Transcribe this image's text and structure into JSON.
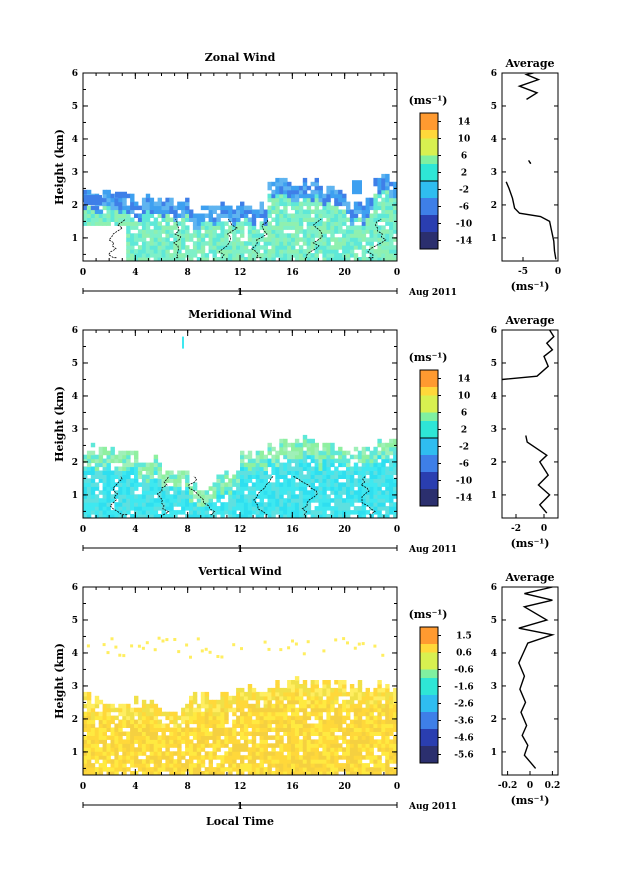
{
  "chart_data": [
    {
      "type": "heatmap",
      "title": "Zonal Wind",
      "ylabel": "Height (km)",
      "x_ticks": [
        "0",
        "4",
        "8",
        "12",
        "16",
        "20",
        "0"
      ],
      "xlim": [
        0,
        24
      ],
      "y_ticks": [
        "1",
        "2",
        "3",
        "4",
        "5",
        "6"
      ],
      "ylim": [
        0.3,
        6
      ],
      "date_label": "1",
      "month_label": "Aug 2011",
      "colorbar": {
        "unit": "(ms⁻¹)",
        "ticks": [
          "14",
          "10",
          "6",
          "2",
          "-2",
          "-6",
          "-10",
          "-14"
        ],
        "range": [
          -16,
          16
        ],
        "zero_line": 0
      },
      "profile": {
        "title": "Average",
        "unit": "(ms⁻¹)",
        "x_ticks": [
          "-5",
          "0"
        ],
        "xlim": [
          -8,
          0
        ],
        "points": [
          [
            -0.3,
            0.35
          ],
          [
            -0.5,
            0.6
          ],
          [
            -0.6,
            0.9
          ],
          [
            -0.8,
            1.1
          ],
          [
            -1.0,
            1.3
          ],
          [
            -1.2,
            1.5
          ],
          [
            -2.5,
            1.65
          ],
          [
            -5.5,
            1.75
          ],
          [
            -6.2,
            1.9
          ],
          [
            -6.5,
            2.2
          ],
          [
            -7.0,
            2.5
          ],
          [
            -7.4,
            2.7
          ]
        ],
        "blobs": [
          [
            [
              -4.2,
              3.35
            ],
            [
              -3.9,
              3.25
            ],
            [
              -4.0,
              3.3
            ]
          ],
          [
            [
              -4.5,
              5.2
            ],
            [
              -3.0,
              5.4
            ],
            [
              -5.5,
              5.6
            ],
            [
              -2.8,
              5.8
            ],
            [
              -4.5,
              5.95
            ],
            [
              -3.5,
              6.0
            ]
          ]
        ]
      }
    },
    {
      "type": "heatmap",
      "title": "Meridional Wind",
      "ylabel": "Height (km)",
      "x_ticks": [
        "0",
        "4",
        "8",
        "12",
        "16",
        "20",
        "0"
      ],
      "xlim": [
        0,
        24
      ],
      "y_ticks": [
        "1",
        "2",
        "3",
        "4",
        "5",
        "6"
      ],
      "ylim": [
        0.3,
        6
      ],
      "date_label": "1",
      "month_label": "Aug 2011",
      "colorbar": {
        "unit": "(ms⁻¹)",
        "ticks": [
          "14",
          "10",
          "6",
          "2",
          "-2",
          "-6",
          "-10",
          "-14"
        ],
        "range": [
          -16,
          16
        ],
        "zero_line": 0
      },
      "profile": {
        "title": "Average",
        "unit": "(ms⁻¹)",
        "x_ticks": [
          "-2",
          "0"
        ],
        "xlim": [
          -3,
          1
        ],
        "points": [
          [
            0.2,
            0.45
          ],
          [
            -0.3,
            0.7
          ],
          [
            0.4,
            1.0
          ],
          [
            -0.4,
            1.3
          ],
          [
            0.3,
            1.6
          ],
          [
            -0.3,
            2.0
          ],
          [
            0.2,
            2.2
          ],
          [
            -0.5,
            2.4
          ],
          [
            -1.2,
            2.6
          ],
          [
            -1.3,
            2.8
          ]
        ],
        "blobs": [
          [
            [
              -3.0,
              4.5
            ],
            [
              -0.5,
              4.6
            ],
            [
              0.3,
              4.9
            ],
            [
              0.0,
              5.2
            ],
            [
              0.6,
              5.4
            ],
            [
              0.2,
              5.6
            ],
            [
              0.7,
              5.8
            ],
            [
              0.4,
              6.0
            ]
          ]
        ]
      }
    },
    {
      "type": "heatmap",
      "title": "Vertical Wind",
      "xlabel": "Local Time",
      "ylabel": "Height (km)",
      "x_ticks": [
        "0",
        "4",
        "8",
        "12",
        "16",
        "20",
        "0"
      ],
      "xlim": [
        0,
        24
      ],
      "y_ticks": [
        "1",
        "2",
        "3",
        "4",
        "5",
        "6"
      ],
      "ylim": [
        0.3,
        6
      ],
      "date_label": "1",
      "month_label": "Aug 2011",
      "colorbar": {
        "unit": "(ms⁻¹)",
        "ticks": [
          "1.5",
          "0.6",
          "-0.6",
          "-1.6",
          "-2.6",
          "-3.6",
          "-4.6",
          "-5.6"
        ],
        "range": [
          -6.0,
          2.0
        ],
        "zero_line": null
      },
      "profile": {
        "title": "Average",
        "unit": "(ms⁻¹)",
        "x_ticks": [
          "-0.2",
          "0",
          "0.2"
        ],
        "xlim": [
          -0.25,
          0.25
        ],
        "points": [
          [
            0.05,
            0.5
          ],
          [
            0.0,
            0.7
          ],
          [
            -0.05,
            0.9
          ],
          [
            -0.02,
            1.2
          ],
          [
            -0.07,
            1.5
          ],
          [
            -0.03,
            1.8
          ],
          [
            -0.08,
            2.2
          ],
          [
            -0.04,
            2.5
          ],
          [
            -0.09,
            2.9
          ],
          [
            -0.05,
            3.3
          ],
          [
            -0.1,
            3.7
          ],
          [
            -0.06,
            4.0
          ],
          [
            -0.02,
            4.3
          ],
          [
            0.2,
            4.55
          ],
          [
            -0.1,
            4.75
          ],
          [
            0.15,
            5.0
          ],
          [
            -0.05,
            5.4
          ],
          [
            0.2,
            5.6
          ],
          [
            -0.05,
            5.8
          ],
          [
            0.2,
            6.0
          ]
        ]
      }
    }
  ]
}
